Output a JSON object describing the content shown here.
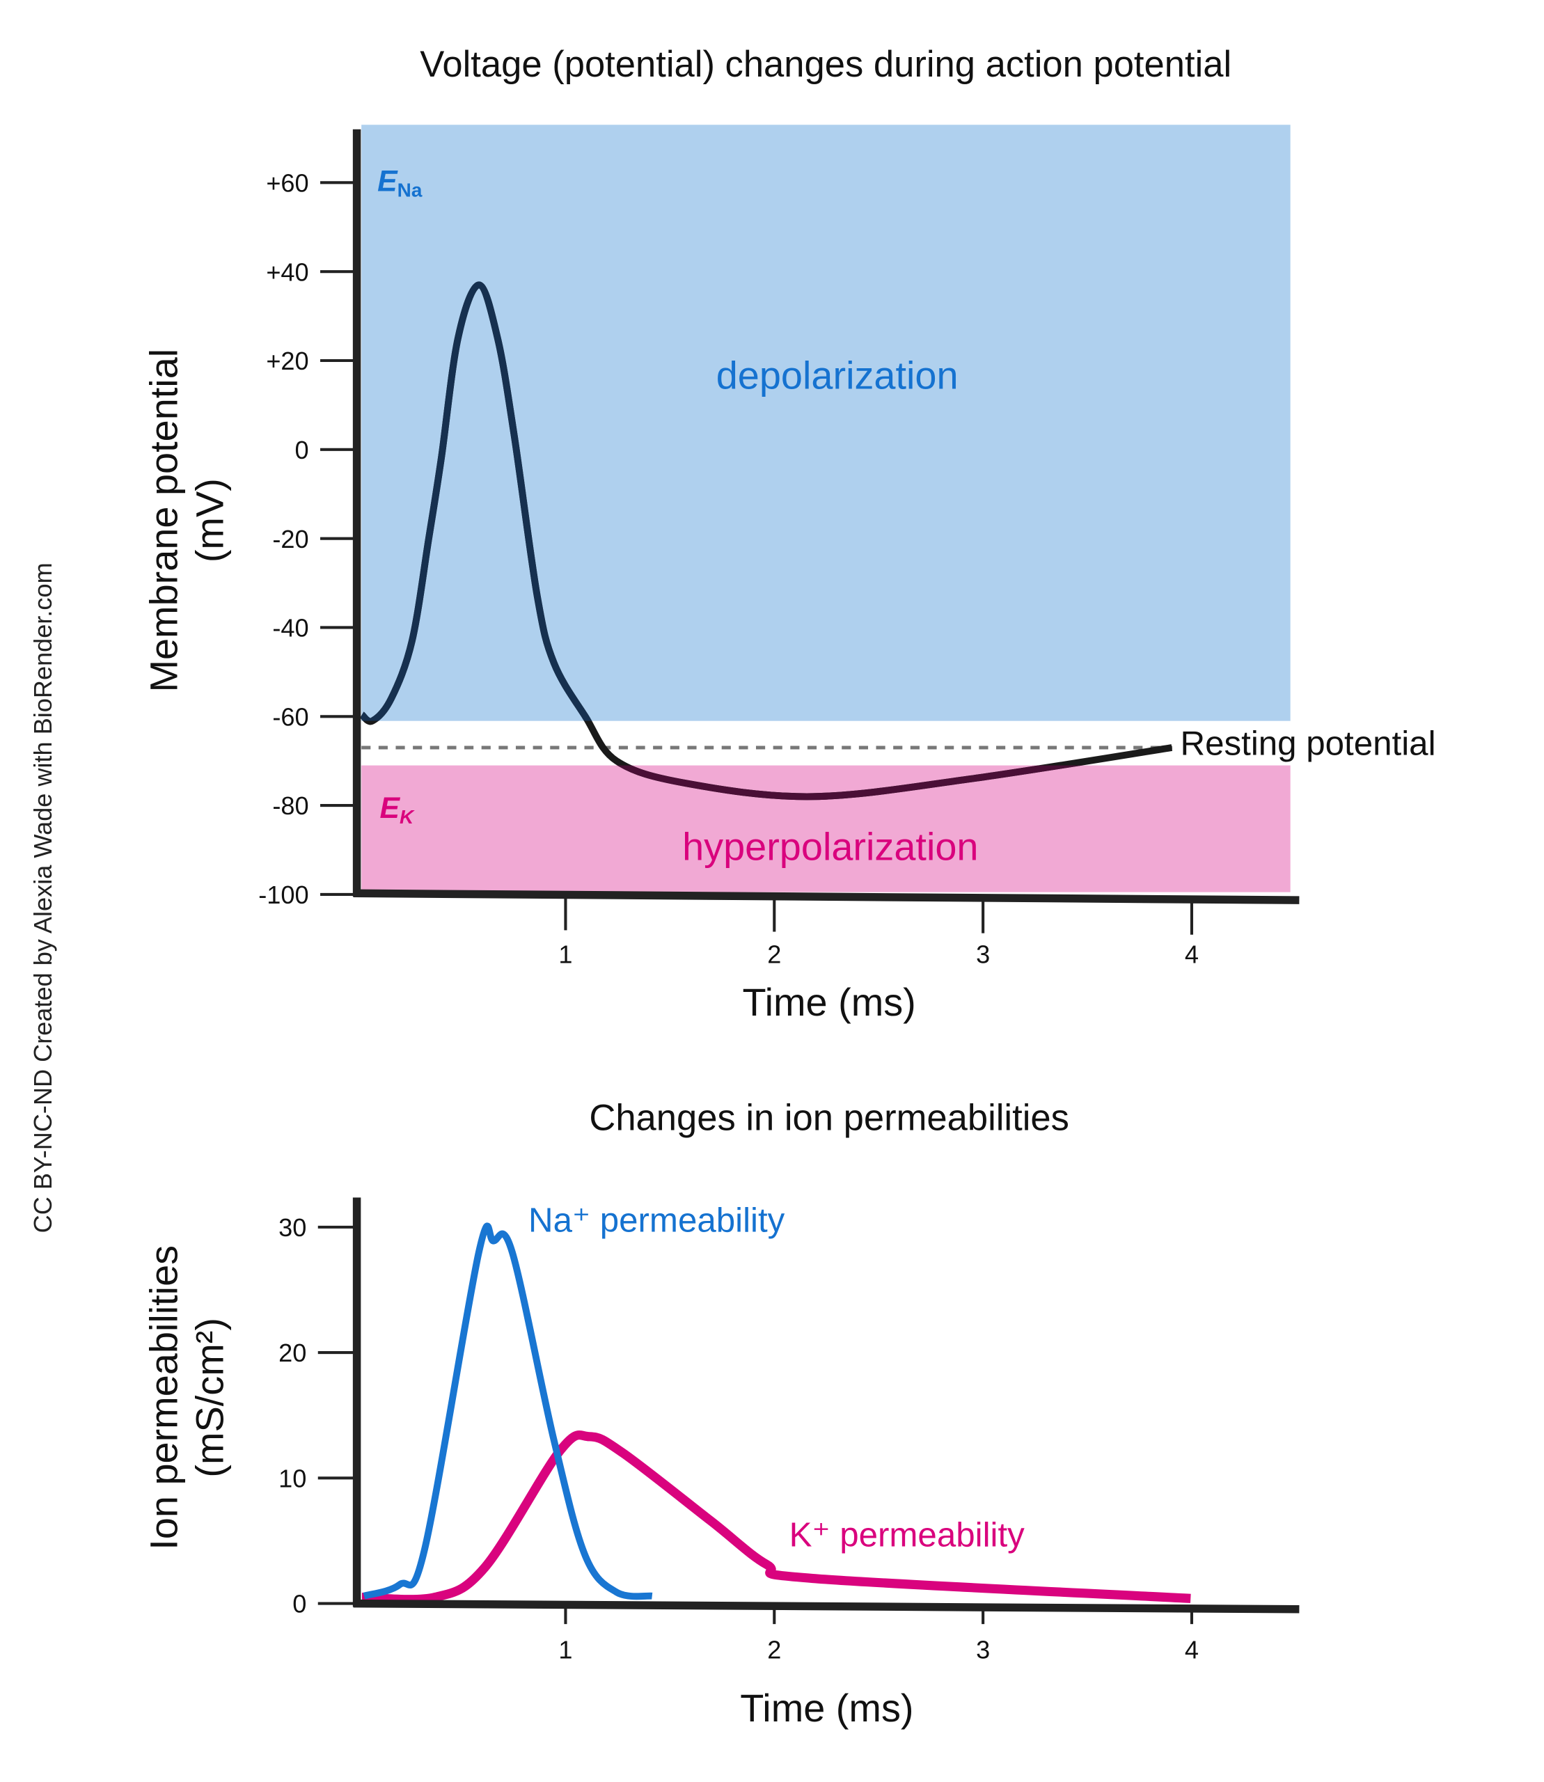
{
  "credit": "CC BY-NC-ND Created by Alexia Wade with BioRender.com",
  "colors": {
    "depolarization_fill": "#afd0ee",
    "hyperpolarization_fill": "#f1a9d4",
    "blue_text": "#1572d0",
    "pink_text": "#d9027d",
    "membrane_curve": "#16304f",
    "membrane_curve_in_hyperpolarization": "#4a0f36",
    "resting_dash": "#777777",
    "na_line": "#1976d2",
    "k_line": "#d9037e"
  },
  "chart_data": [
    {
      "type": "line",
      "title": "Voltage (potential) changes during action potential",
      "xlabel": "Time (ms)",
      "ylabel": "Membrane potential",
      "ylabel_unit": "(mV)",
      "xlim": [
        0,
        4.5
      ],
      "ylim": [
        -100,
        73
      ],
      "xticks": [
        "1",
        "2",
        "3",
        "4"
      ],
      "xtick_values": [
        1,
        2,
        3,
        4
      ],
      "yticks": [
        "+60",
        "+40",
        "+20",
        "0",
        "-20",
        "-40",
        "-60",
        "-80",
        "-100"
      ],
      "ytick_values": [
        60,
        40,
        20,
        0,
        -20,
        -40,
        -60,
        -80,
        -100
      ],
      "grid": false,
      "regions": [
        {
          "label": "depolarization",
          "marker": "E",
          "marker_sub": "Na",
          "from": -61,
          "to": 73
        },
        {
          "label": "hyperpolarization",
          "marker": "E",
          "marker_sub": "K",
          "from": -100,
          "to": -71
        }
      ],
      "reference_line": {
        "label": "Resting potential",
        "value": -67
      },
      "series": [
        {
          "x": [
            0.03,
            0.08,
            0.17,
            0.27,
            0.35,
            0.41,
            0.49,
            0.59,
            0.68,
            0.76,
            0.87,
            0.95,
            1.1,
            1.25,
            1.58,
            2.19,
            2.95,
            3.91
          ],
          "y": [
            -59.6,
            -61,
            -56,
            -43,
            -20,
            -2,
            25,
            37,
            25,
            3,
            -33,
            -48,
            -60,
            -70,
            -75,
            -78,
            -74,
            -67
          ]
        }
      ]
    },
    {
      "type": "line",
      "title": "Changes in ion permeabilities",
      "xlabel": "Time (ms)",
      "ylabel": "Ion permeabilities",
      "ylabel_unit": "(mS/cm²)",
      "xlim": [
        0,
        4.5
      ],
      "ylim": [
        0,
        32
      ],
      "xticks": [
        "1",
        "2",
        "3",
        "4"
      ],
      "xtick_values": [
        1,
        2,
        3,
        4
      ],
      "yticks": [
        "30",
        "20",
        "10",
        "0"
      ],
      "ytick_values": [
        30,
        20,
        10,
        0
      ],
      "grid": false,
      "series": [
        {
          "name": "Na⁺ permeability",
          "x": [
            0.04,
            0.21,
            0.33,
            0.59,
            0.66,
            0.75,
            0.95,
            1.1,
            1.25,
            1.42
          ],
          "y": [
            0.6,
            1.5,
            4.3,
            28,
            28.9,
            28,
            13,
            3.8,
            0.9,
            0.6
          ]
        },
        {
          "name": "K⁺ permeability",
          "x": [
            0.03,
            0.38,
            0.62,
            0.98,
            1.12,
            1.28,
            1.7,
            1.97,
            2.19,
            4.0
          ],
          "y": [
            0.5,
            0.5,
            2.9,
            12.2,
            13.3,
            12,
            6.6,
            3.1,
            2.0,
            0.4
          ]
        }
      ]
    }
  ]
}
